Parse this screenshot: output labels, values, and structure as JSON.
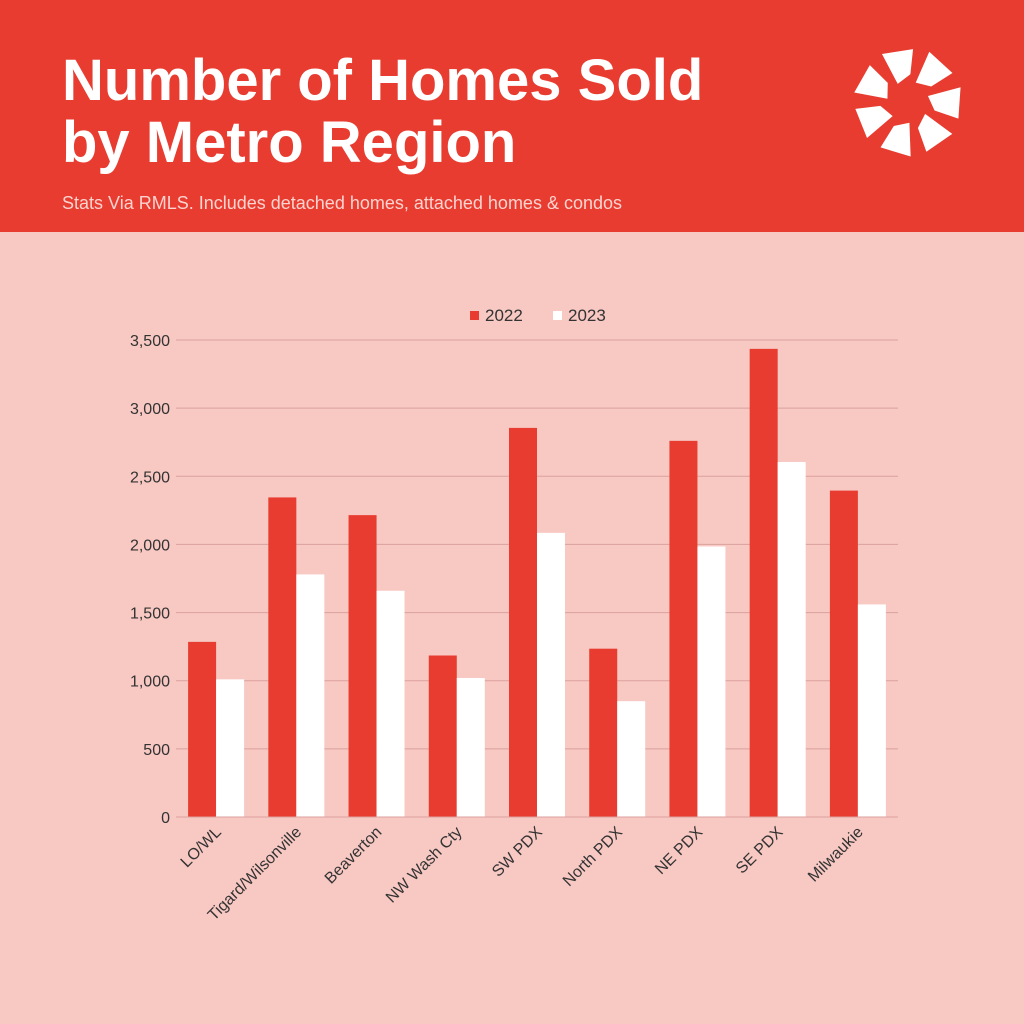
{
  "header": {
    "title_line1": "Number of Homes Sold",
    "title_line2": "by Metro Region",
    "subtitle": "Stats Via RMLS. Includes detached homes, attached homes & condos",
    "logo_icon": "pinwheel-logo-icon"
  },
  "colors": {
    "header_bg": "#e83c30",
    "page_bg": "#f8c8c3",
    "series_2022": "#e83c30",
    "series_2023": "#ffffff",
    "grid": "#dba19c",
    "axis_text": "#333333"
  },
  "chart_data": {
    "type": "bar",
    "categories": [
      "LO/WL",
      "Tigard/Wilsonville",
      "Beaverton",
      "NW Wash Cty",
      "SW PDX",
      "North PDX",
      "NE PDX",
      "SE PDX",
      "Milwaukie"
    ],
    "series": [
      {
        "name": "2022",
        "values": [
          1285,
          2345,
          2215,
          1185,
          2855,
          1235,
          2760,
          3435,
          2395
        ]
      },
      {
        "name": "2023",
        "values": [
          1010,
          1780,
          1660,
          1020,
          2085,
          850,
          1985,
          2605,
          1560
        ]
      }
    ],
    "ylim": [
      0,
      3500
    ],
    "yticks": [
      0,
      500,
      1000,
      1500,
      2000,
      2500,
      3000,
      3500
    ],
    "ytick_labels": [
      "0",
      "500",
      "1,000",
      "1,500",
      "2,000",
      "2,500",
      "3,000",
      "3,500"
    ],
    "grid": true,
    "legend_position": "top-center",
    "xlabel": "",
    "ylabel": ""
  }
}
